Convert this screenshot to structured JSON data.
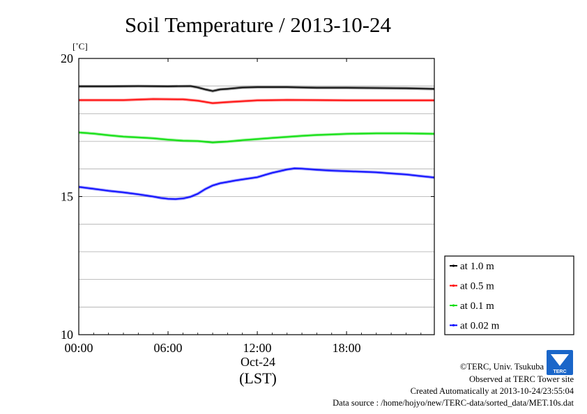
{
  "chart_data": {
    "type": "line",
    "title": "Soil Temperature / 2013-10-24",
    "ylabel": "[˚C]",
    "xlabel": "(LST)",
    "date_label": "Oct-24",
    "ylim": [
      10,
      20
    ],
    "xlim_hours": [
      0,
      23.9
    ],
    "x_ticks": [
      {
        "hour": 0,
        "label": "00:00"
      },
      {
        "hour": 6,
        "label": "06:00"
      },
      {
        "hour": 12,
        "label": "12:00"
      },
      {
        "hour": 18,
        "label": "18:00"
      }
    ],
    "y_ticks": [
      {
        "value": 20,
        "label": "20"
      },
      {
        "value": 15,
        "label": "15"
      },
      {
        "value": 10,
        "label": "10"
      }
    ],
    "grid": true,
    "legend_position": "right-bottom",
    "series": [
      {
        "name": "at 1.0 m",
        "color": "#000000",
        "points": [
          [
            0,
            18.99
          ],
          [
            2,
            18.99
          ],
          [
            4,
            19.0
          ],
          [
            6,
            18.99
          ],
          [
            7.5,
            19.0
          ],
          [
            8,
            18.95
          ],
          [
            8.5,
            18.88
          ],
          [
            9,
            18.82
          ],
          [
            9.5,
            18.88
          ],
          [
            10,
            18.9
          ],
          [
            11,
            18.95
          ],
          [
            12,
            18.96
          ],
          [
            14,
            18.96
          ],
          [
            16,
            18.94
          ],
          [
            18,
            18.94
          ],
          [
            20,
            18.93
          ],
          [
            22,
            18.92
          ],
          [
            23.9,
            18.9
          ]
        ]
      },
      {
        "name": "at 0.5 m",
        "color": "#ff0000",
        "points": [
          [
            0,
            18.49
          ],
          [
            3,
            18.49
          ],
          [
            5,
            18.53
          ],
          [
            7,
            18.52
          ],
          [
            8,
            18.47
          ],
          [
            9,
            18.38
          ],
          [
            10,
            18.42
          ],
          [
            11,
            18.45
          ],
          [
            12,
            18.48
          ],
          [
            14,
            18.5
          ],
          [
            16,
            18.49
          ],
          [
            18,
            18.48
          ],
          [
            20,
            18.48
          ],
          [
            22,
            18.48
          ],
          [
            23.9,
            18.48
          ]
        ]
      },
      {
        "name": "at 0.1 m",
        "color": "#00dd00",
        "points": [
          [
            0,
            17.32
          ],
          [
            1,
            17.28
          ],
          [
            2,
            17.22
          ],
          [
            3,
            17.17
          ],
          [
            4,
            17.14
          ],
          [
            5,
            17.11
          ],
          [
            6,
            17.06
          ],
          [
            7,
            17.02
          ],
          [
            8,
            17.01
          ],
          [
            9,
            16.96
          ],
          [
            10,
            16.99
          ],
          [
            11,
            17.04
          ],
          [
            12,
            17.08
          ],
          [
            13,
            17.12
          ],
          [
            14,
            17.16
          ],
          [
            15,
            17.2
          ],
          [
            16,
            17.23
          ],
          [
            17,
            17.25
          ],
          [
            18,
            17.27
          ],
          [
            19,
            17.28
          ],
          [
            20,
            17.29
          ],
          [
            21,
            17.29
          ],
          [
            22,
            17.29
          ],
          [
            23,
            17.28
          ],
          [
            23.9,
            17.27
          ]
        ]
      },
      {
        "name": "at 0.02 m",
        "color": "#0000ff",
        "points": [
          [
            0,
            15.35
          ],
          [
            1,
            15.28
          ],
          [
            2,
            15.21
          ],
          [
            3,
            15.15
          ],
          [
            4,
            15.08
          ],
          [
            5,
            15.0
          ],
          [
            5.5,
            14.95
          ],
          [
            6,
            14.92
          ],
          [
            6.5,
            14.91
          ],
          [
            7,
            14.93
          ],
          [
            7.5,
            14.99
          ],
          [
            8,
            15.1
          ],
          [
            8.5,
            15.27
          ],
          [
            9,
            15.4
          ],
          [
            9.5,
            15.48
          ],
          [
            10,
            15.53
          ],
          [
            10.5,
            15.58
          ],
          [
            11,
            15.62
          ],
          [
            12,
            15.7
          ],
          [
            12.5,
            15.78
          ],
          [
            13,
            15.86
          ],
          [
            13.5,
            15.92
          ],
          [
            14,
            15.98
          ],
          [
            14.5,
            16.02
          ],
          [
            15,
            16.01
          ],
          [
            16,
            15.97
          ],
          [
            17,
            15.94
          ],
          [
            18,
            15.92
          ],
          [
            19,
            15.9
          ],
          [
            20,
            15.88
          ],
          [
            21,
            15.84
          ],
          [
            22,
            15.8
          ],
          [
            23,
            15.74
          ],
          [
            23.9,
            15.69
          ]
        ]
      }
    ]
  },
  "footer": {
    "copyright": "©TERC, Univ. Tsukuba",
    "observed": "Observed at TERC Tower site",
    "created": "Created Automatically at 2013-10-24/23:55:04",
    "source": "Data source : /home/hojyo/new/TERC-data/sorted_data/MET.10s.dat",
    "logo_text": "TERC"
  }
}
